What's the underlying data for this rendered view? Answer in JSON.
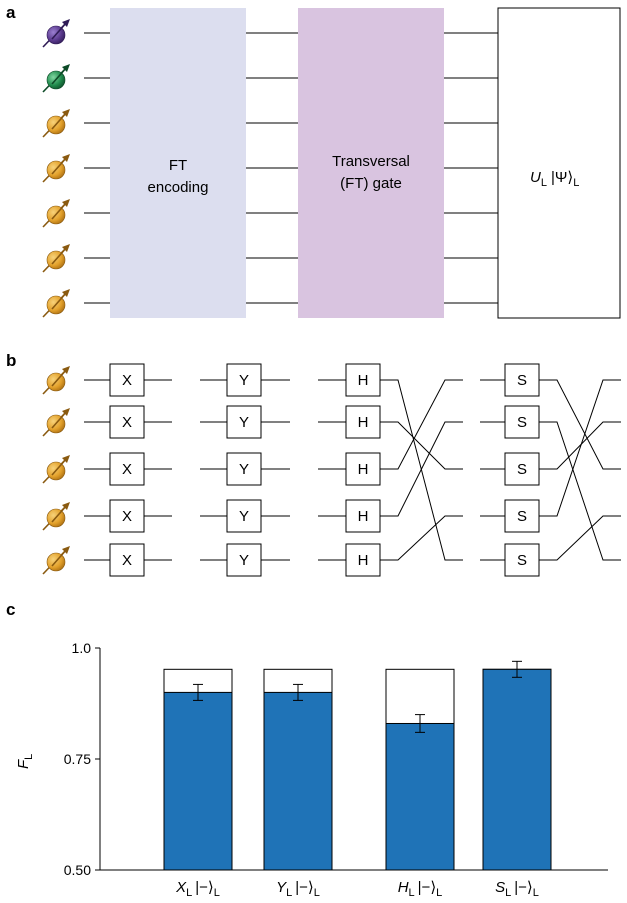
{
  "panels": {
    "a": {
      "label": "a",
      "qubits": [
        "purple",
        "green",
        "orange",
        "orange",
        "orange",
        "orange",
        "orange"
      ],
      "boxes": [
        {
          "lines": [
            "FT",
            "encoding"
          ],
          "fill": "#dcdeef"
        },
        {
          "lines": [
            "Transversal",
            "(FT) gate"
          ],
          "fill": "#d9c4e0"
        },
        {
          "math": {
            "u": "U",
            "sub": "L",
            "ket": "|Ψ⟩",
            "ket_sub": "L"
          },
          "fill": "#ffffff"
        }
      ]
    },
    "b": {
      "label": "b",
      "gate_columns": [
        {
          "gate": "X"
        },
        {
          "gate": "Y"
        },
        {
          "gate": "H"
        },
        {
          "gate": "S"
        }
      ],
      "permutation_note": "qubit line swaps after H and after S"
    },
    "c": {
      "label": "c"
    }
  },
  "colors": {
    "qubit_purple": "#5b3a8e",
    "qubit_green": "#1f8a4c",
    "qubit_orange": "#e3a12b",
    "bar_blue": "#1f73b7",
    "encoding_box": "#dcdeef",
    "gate_box": "#d9c4e0"
  },
  "chart_data": {
    "type": "bar",
    "ylabel": "F",
    "ylabel_sub": "L",
    "ylim": [
      0.5,
      1.0
    ],
    "yticks": [
      "0.50",
      "0.75",
      "1.0"
    ],
    "categories": [
      {
        "op": "X",
        "sub": "L",
        "state": "|−⟩",
        "state_sub": "L"
      },
      {
        "op": "Y",
        "sub": "L",
        "state": "|−⟩",
        "state_sub": "L"
      },
      {
        "op": "H",
        "sub": "L",
        "state": "|−⟩",
        "state_sub": "L"
      },
      {
        "op": "S",
        "sub": "L",
        "state": "|−⟩",
        "state_sub": "L"
      }
    ],
    "series": [
      {
        "values": [
          0.9,
          0.9,
          0.83,
          0.952
        ],
        "errors": [
          0.018,
          0.018,
          0.02,
          0.018
        ]
      },
      {
        "values": [
          0.952,
          0.952,
          0.952,
          0.952
        ]
      }
    ]
  }
}
